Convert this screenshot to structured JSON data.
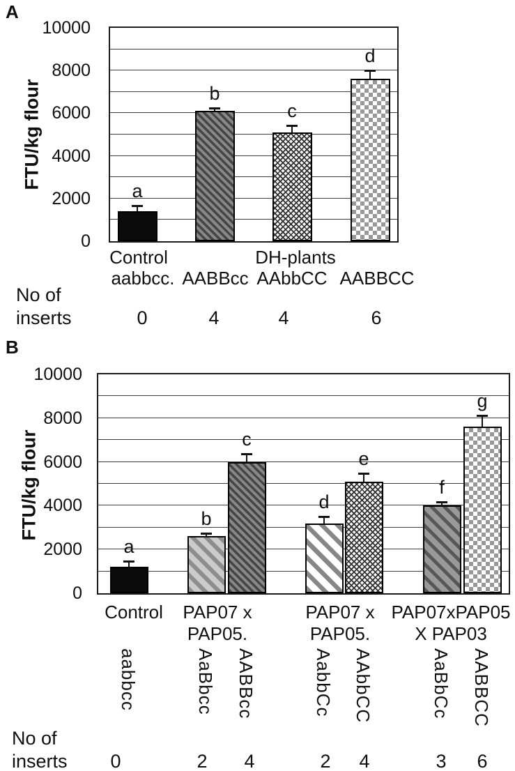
{
  "figure": {
    "panels": [
      {
        "panel_letter": "A",
        "ylabel": "FTU/kg flour",
        "yticks": [
          "10000",
          "8000",
          "6000",
          "4000",
          "2000",
          "0"
        ],
        "inserts_row_label": [
          "No of",
          "inserts"
        ]
      },
      {
        "panel_letter": "B",
        "ylabel": "FTU/kg flour",
        "yticks": [
          "10000",
          "8000",
          "6000",
          "4000",
          "2000",
          "0"
        ],
        "inserts_row_label": [
          "No of",
          "inserts"
        ]
      }
    ]
  },
  "chart_data": [
    {
      "panel": "A",
      "type": "bar",
      "title": "",
      "xlabel": "",
      "ylabel": "FTU/kg flour",
      "ylim": [
        0,
        10000
      ],
      "ytick_step": 2000,
      "grid_step": 1000,
      "grid": "horizontal",
      "legend": "none",
      "bars": [
        {
          "group": "Control",
          "genotype": "aabbcc.",
          "value": 1400,
          "error": 200,
          "sig_letter": "a",
          "pattern": "solid-black",
          "inserts": "0"
        },
        {
          "group": "",
          "genotype": "AABBcc",
          "value": 6100,
          "error": 80,
          "sig_letter": "b",
          "pattern": "dark-diagonal",
          "inserts": "4"
        },
        {
          "group": "DH-plants",
          "genotype": "AAbbCC",
          "value": 5100,
          "error": 250,
          "sig_letter": "c",
          "pattern": "cross-weave",
          "inserts": "4"
        },
        {
          "group": "",
          "genotype": "AABBCC",
          "value": 7600,
          "error": 350,
          "sig_letter": "d",
          "pattern": "checkerboard",
          "inserts": "6"
        }
      ]
    },
    {
      "panel": "B",
      "type": "bar",
      "title": "",
      "xlabel": "",
      "ylabel": "FTU/kg flour",
      "ylim": [
        0,
        10000
      ],
      "ytick_step": 2000,
      "grid_step": 1000,
      "grid": "horizontal",
      "legend": "none",
      "groups": [
        {
          "label_lines": [
            "Control"
          ],
          "bars": [
            {
              "genotype": "aabbcc",
              "value": 1200,
              "error": 200,
              "sig_letter": "a",
              "pattern": "solid-black",
              "inserts": "0"
            }
          ]
        },
        {
          "label_lines": [
            "PAP07 x",
            "PAP05."
          ],
          "bars": [
            {
              "genotype": "AaBbcc",
              "value": 2600,
              "error": 80,
              "sig_letter": "b",
              "pattern": "light-diagonal",
              "inserts": "2"
            },
            {
              "genotype": "AABBcc",
              "value": 6000,
              "error": 300,
              "sig_letter": "c",
              "pattern": "dark-diagonal",
              "inserts": "4"
            }
          ]
        },
        {
          "label_lines": [
            "PAP07 x",
            "PAP05."
          ],
          "bars": [
            {
              "genotype": "AabbCc",
              "value": 3200,
              "error": 250,
              "sig_letter": "d",
              "pattern": "white-diagonal",
              "inserts": "2"
            },
            {
              "genotype": "AAbbCC",
              "value": 5100,
              "error": 300,
              "sig_letter": "e",
              "pattern": "cross-weave",
              "inserts": "4"
            }
          ]
        },
        {
          "label_lines": [
            "PAP07xPAP05",
            "X PAP03"
          ],
          "bars": [
            {
              "genotype": "AaBbCc",
              "value": 4000,
              "error": 100,
              "sig_letter": "f",
              "pattern": "mid-diagonal",
              "inserts": "3"
            },
            {
              "genotype": "AABBCC",
              "value": 7600,
              "error": 450,
              "sig_letter": "g",
              "pattern": "checkerboard",
              "inserts": "6"
            }
          ]
        }
      ]
    }
  ]
}
